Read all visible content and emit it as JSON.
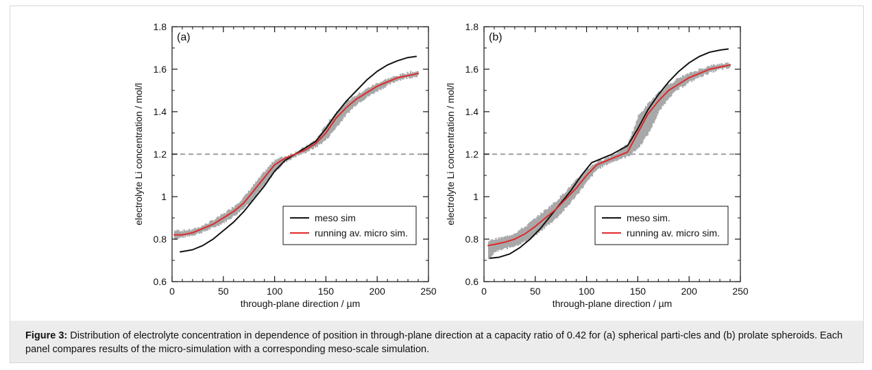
{
  "caption": {
    "label": "Figure 3:",
    "text": " Distribution of electrolyte concentration in dependence of position in through-plane direction at a capacity ratio of 0.42 for (a) spherical parti-cles and (b) prolate spheroids. Each panel compares results of the micro-simulation with a corresponding meso-scale simulation."
  },
  "colors": {
    "meso": "#111111",
    "micro": "#e0282a",
    "scatter": "#a8a8a8"
  },
  "chart_data": [
    {
      "type": "line",
      "panel_label": "(a)",
      "xlabel": "through-plane direction / µm",
      "ylabel": "electrolyte Li concentration / mol/l",
      "xlim": [
        0,
        250
      ],
      "ylim": [
        0.6,
        1.8
      ],
      "xticks": [
        0,
        50,
        100,
        150,
        200,
        250
      ],
      "yticks": [
        0.6,
        0.8,
        1.0,
        1.2,
        1.4,
        1.6,
        1.8
      ],
      "legend": "lower-right",
      "series": [
        {
          "name": "meso sim",
          "color_key": "meso",
          "x": [
            8,
            20,
            30,
            40,
            50,
            60,
            70,
            80,
            90,
            100,
            110,
            120,
            130,
            140,
            150,
            160,
            170,
            180,
            190,
            200,
            210,
            220,
            230,
            238
          ],
          "y": [
            0.74,
            0.75,
            0.77,
            0.8,
            0.84,
            0.88,
            0.93,
            0.99,
            1.05,
            1.12,
            1.17,
            1.2,
            1.23,
            1.26,
            1.32,
            1.39,
            1.45,
            1.5,
            1.55,
            1.59,
            1.62,
            1.64,
            1.655,
            1.66
          ]
        },
        {
          "name": "running av. micro sim.",
          "color_key": "micro",
          "x": [
            2,
            10,
            20,
            30,
            40,
            50,
            60,
            70,
            80,
            90,
            100,
            110,
            120,
            130,
            140,
            150,
            160,
            170,
            180,
            190,
            200,
            210,
            220,
            230,
            240
          ],
          "y": [
            0.82,
            0.82,
            0.83,
            0.85,
            0.87,
            0.9,
            0.93,
            0.97,
            1.03,
            1.09,
            1.15,
            1.18,
            1.2,
            1.22,
            1.25,
            1.3,
            1.37,
            1.42,
            1.46,
            1.49,
            1.52,
            1.54,
            1.56,
            1.57,
            1.58
          ]
        }
      ],
      "micro_band": {
        "x": [
          2,
          10,
          20,
          30,
          40,
          50,
          60,
          70,
          80,
          90,
          100,
          110,
          120,
          130,
          140,
          150,
          160,
          170,
          180,
          190,
          200,
          210,
          220,
          230,
          240
        ],
        "low": [
          0.8,
          0.81,
          0.82,
          0.835,
          0.855,
          0.88,
          0.91,
          0.95,
          1.0,
          1.06,
          1.12,
          1.165,
          1.19,
          1.21,
          1.235,
          1.27,
          1.33,
          1.39,
          1.44,
          1.47,
          1.5,
          1.525,
          1.55,
          1.56,
          1.57
        ],
        "high": [
          0.84,
          0.84,
          0.845,
          0.865,
          0.89,
          0.92,
          0.955,
          1.0,
          1.06,
          1.12,
          1.175,
          1.19,
          1.21,
          1.235,
          1.27,
          1.34,
          1.4,
          1.45,
          1.48,
          1.51,
          1.535,
          1.555,
          1.57,
          1.585,
          1.59
        ]
      },
      "reference_level": {
        "y": 1.2,
        "segments": [
          [
            0,
            100
          ],
          [
            135,
            245
          ]
        ]
      }
    },
    {
      "type": "line",
      "panel_label": "(b)",
      "xlabel": "through-plane direction / µm",
      "ylabel": "electrolyte Li concentration / mol/l",
      "xlim": [
        0,
        250
      ],
      "ylim": [
        0.6,
        1.8
      ],
      "xticks": [
        0,
        50,
        100,
        150,
        200,
        250
      ],
      "yticks": [
        0.6,
        0.8,
        1.0,
        1.2,
        1.4,
        1.6,
        1.8
      ],
      "legend": "lower-right",
      "series": [
        {
          "name": "meso sim.",
          "color_key": "meso",
          "x": [
            6,
            15,
            25,
            35,
            45,
            55,
            65,
            75,
            85,
            95,
            105,
            115,
            125,
            140,
            150,
            160,
            170,
            180,
            190,
            200,
            210,
            220,
            230,
            238
          ],
          "y": [
            0.71,
            0.715,
            0.73,
            0.76,
            0.8,
            0.85,
            0.91,
            0.97,
            1.03,
            1.1,
            1.16,
            1.18,
            1.2,
            1.24,
            1.32,
            1.41,
            1.48,
            1.54,
            1.59,
            1.63,
            1.66,
            1.68,
            1.69,
            1.695
          ]
        },
        {
          "name": "running av. micro sim.",
          "color_key": "micro",
          "x": [
            4,
            10,
            20,
            30,
            40,
            50,
            60,
            70,
            80,
            90,
            100,
            110,
            120,
            130,
            140,
            150,
            160,
            170,
            180,
            190,
            200,
            210,
            220,
            230,
            240
          ],
          "y": [
            0.77,
            0.775,
            0.785,
            0.8,
            0.825,
            0.86,
            0.9,
            0.94,
            0.99,
            1.04,
            1.1,
            1.15,
            1.17,
            1.19,
            1.21,
            1.3,
            1.39,
            1.45,
            1.5,
            1.53,
            1.56,
            1.58,
            1.6,
            1.61,
            1.62
          ]
        }
      ],
      "micro_band": {
        "x": [
          4,
          10,
          20,
          30,
          40,
          50,
          60,
          70,
          80,
          90,
          100,
          110,
          120,
          130,
          140,
          150,
          160,
          170,
          180,
          190,
          200,
          210,
          220,
          230,
          240
        ],
        "low": [
          0.7,
          0.74,
          0.755,
          0.77,
          0.79,
          0.82,
          0.86,
          0.9,
          0.95,
          1.01,
          1.07,
          1.13,
          1.155,
          1.175,
          1.19,
          1.23,
          1.3,
          1.4,
          1.47,
          1.51,
          1.54,
          1.565,
          1.585,
          1.6,
          1.605
        ],
        "high": [
          0.79,
          0.8,
          0.81,
          0.83,
          0.86,
          0.9,
          0.94,
          0.98,
          1.03,
          1.08,
          1.13,
          1.165,
          1.185,
          1.21,
          1.25,
          1.38,
          1.44,
          1.49,
          1.53,
          1.56,
          1.58,
          1.6,
          1.615,
          1.625,
          1.63
        ]
      },
      "reference_level": {
        "y": 1.2,
        "segments": [
          [
            0,
            100
          ],
          [
            135,
            245
          ]
        ]
      }
    }
  ]
}
